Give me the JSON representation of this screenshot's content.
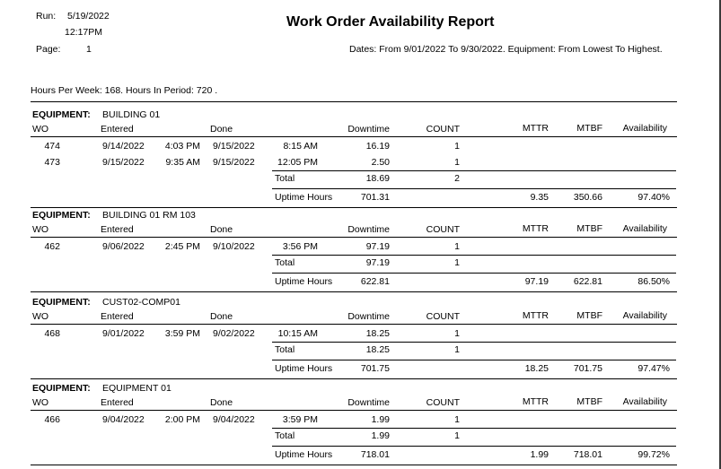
{
  "header": {
    "run_label": "Run:",
    "run_date": "5/19/2022",
    "run_time": "12:17PM",
    "page_label": "Page:",
    "page_number": "1",
    "title": "Work Order Availability Report",
    "dates": "Dates: From  9/01/2022 To  9/30/2022. Equipment: From Lowest To Highest."
  },
  "hours_line": "Hours Per Week: 168. Hours In Period: 720 .",
  "columns": {
    "equipment": "EQUIPMENT:",
    "wo": "WO",
    "entered": "Entered",
    "done": "Done",
    "downtime": "Downtime",
    "count": "COUNT",
    "mttr": "MTTR",
    "mtbf": "MTBF",
    "availability": "Availability"
  },
  "labels": {
    "total": "Total",
    "uptime": "Uptime Hours"
  },
  "groups": [
    {
      "name": "BUILDING 01",
      "rows": [
        {
          "wo": "474",
          "entered_date": "9/14/2022",
          "entered_time": "4:03 PM",
          "done_date": "9/15/2022",
          "done_time": "8:15 AM",
          "downtime": "16.19",
          "count": "1"
        },
        {
          "wo": "473",
          "entered_date": "9/15/2022",
          "entered_time": "9:35 AM",
          "done_date": "9/15/2022",
          "done_time": "12:05 PM",
          "downtime": "2.50",
          "count": "1"
        }
      ],
      "total_downtime": "18.69",
      "total_count": "2",
      "uptime": "701.31",
      "mttr": "9.35",
      "mtbf": "350.66",
      "availability": "97.40%"
    },
    {
      "name": "BUILDING 01 RM 103",
      "rows": [
        {
          "wo": "462",
          "entered_date": "9/06/2022",
          "entered_time": "2:45 PM",
          "done_date": "9/10/2022",
          "done_time": "3:56 PM",
          "downtime": "97.19",
          "count": "1"
        }
      ],
      "total_downtime": "97.19",
      "total_count": "1",
      "uptime": "622.81",
      "mttr": "97.19",
      "mtbf": "622.81",
      "availability": "86.50%"
    },
    {
      "name": "CUST02-COMP01",
      "rows": [
        {
          "wo": "468",
          "entered_date": "9/01/2022",
          "entered_time": "3:59 PM",
          "done_date": "9/02/2022",
          "done_time": "10:15 AM",
          "downtime": "18.25",
          "count": "1"
        }
      ],
      "total_downtime": "18.25",
      "total_count": "1",
      "uptime": "701.75",
      "mttr": "18.25",
      "mtbf": "701.75",
      "availability": "97.47%"
    },
    {
      "name": "EQUIPMENT 01",
      "rows": [
        {
          "wo": "466",
          "entered_date": "9/04/2022",
          "entered_time": "2:00 PM",
          "done_date": "9/04/2022",
          "done_time": "3:59 PM",
          "downtime": "1.99",
          "count": "1"
        }
      ],
      "total_downtime": "1.99",
      "total_count": "1",
      "uptime": "718.01",
      "mttr": "1.99",
      "mtbf": "718.01",
      "availability": "99.72%"
    }
  ]
}
